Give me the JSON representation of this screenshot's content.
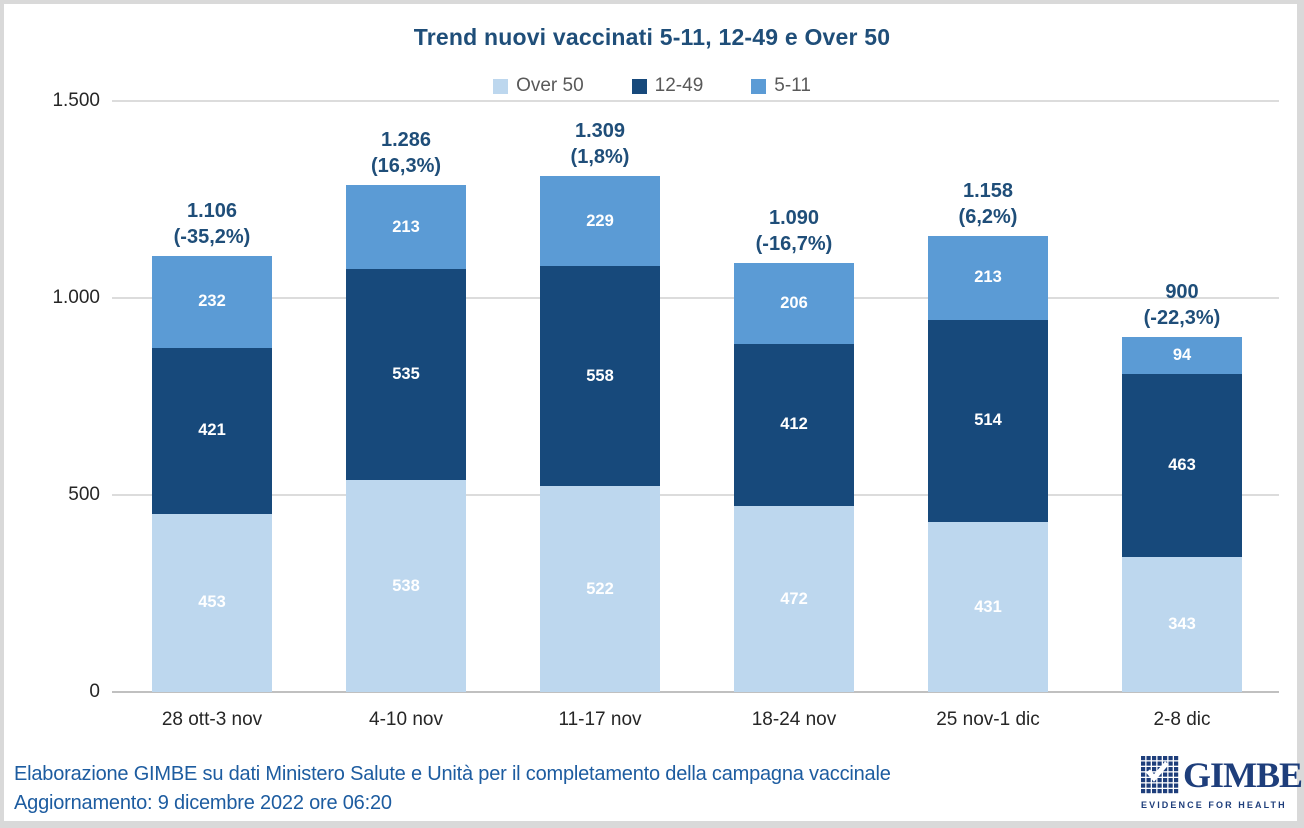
{
  "title": "Trend nuovi vaccinati 5-11, 12-49 e Over 50",
  "footer": {
    "line1": "Elaborazione GIMBE su dati Ministero Salute e Unità per il completamento della campagna vaccinale",
    "line2": "Aggiornamento: 9 dicembre 2022 ore 06:20"
  },
  "logo": {
    "name": "GIMBE",
    "tagline": "EVIDENCE FOR HEALTH",
    "color": "#1e3e7b"
  },
  "colors": {
    "title_text": "#1f4e79",
    "total_label_text": "#1f4e79",
    "footer_text": "#1d5ca0",
    "legend_text": "#595959",
    "gridline": "#dcdcdc",
    "axis_line": "#c0c0c0",
    "frame": "#d9d9d9"
  },
  "chart_data": {
    "type": "bar",
    "stacked": true,
    "title": "Trend nuovi vaccinati 5-11, 12-49 e Over 50",
    "categories": [
      "28 ott-3 nov",
      "4-10 nov",
      "11-17 nov",
      "18-24 nov",
      "25 nov-1 dic",
      "2-8 dic"
    ],
    "series": [
      {
        "name": "Over 50",
        "color": "#bdd7ee",
        "values": [
          453,
          538,
          522,
          472,
          431,
          343
        ]
      },
      {
        "name": "12-49",
        "color": "#17497b",
        "values": [
          421,
          535,
          558,
          412,
          514,
          463
        ]
      },
      {
        "name": "5-11",
        "color": "#5b9bd5",
        "values": [
          232,
          213,
          229,
          206,
          213,
          94
        ]
      }
    ],
    "totals": [
      "1.106",
      "1.286",
      "1.309",
      "1.090",
      "1.158",
      "900"
    ],
    "pct_change": [
      "(-35,2%)",
      "(16,3%)",
      "(1,8%)",
      "(-16,7%)",
      "(6,2%)",
      "(-22,3%)"
    ],
    "xlabel": "",
    "ylabel": "",
    "ylim": [
      0,
      1500
    ],
    "ytick_values": [
      0,
      500,
      1000,
      1500
    ],
    "yticks": [
      "0",
      "500",
      "1.000",
      "1.500"
    ],
    "grid": true,
    "legend_position": "top"
  }
}
